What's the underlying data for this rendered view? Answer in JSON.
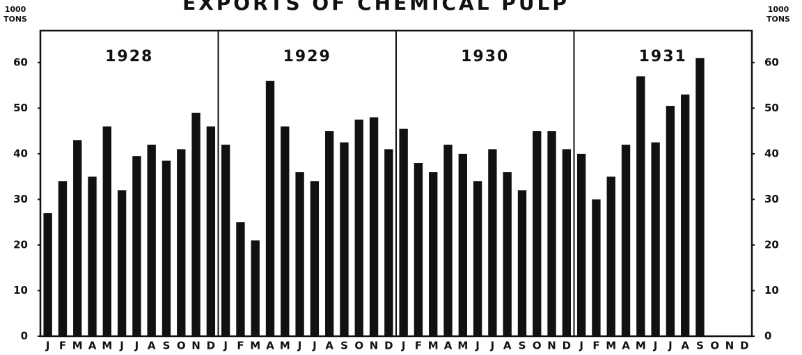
{
  "chart_data": {
    "type": "bar",
    "title": "EXPORTS OF CHEMICAL PULP",
    "ylabel_lines": [
      "1000",
      "TONS"
    ],
    "y2label_lines": [
      "1000",
      "TONS"
    ],
    "years": [
      "1928",
      "1929",
      "1930",
      "1931"
    ],
    "categories": [
      "J",
      "F",
      "M",
      "A",
      "M",
      "J",
      "J",
      "A",
      "S",
      "O",
      "N",
      "D",
      "J",
      "F",
      "M",
      "A",
      "M",
      "J",
      "J",
      "A",
      "S",
      "O",
      "N",
      "D",
      "J",
      "F",
      "M",
      "A",
      "M",
      "J",
      "J",
      "A",
      "S",
      "O",
      "N",
      "D",
      "J",
      "F",
      "M",
      "A",
      "M",
      "J",
      "J",
      "A",
      "S",
      "O",
      "N",
      "D"
    ],
    "values": [
      27,
      34,
      43,
      35,
      46,
      32,
      39.5,
      42,
      38.5,
      41,
      49,
      46,
      42,
      25,
      21,
      56,
      46,
      36,
      34,
      45,
      42.5,
      47.5,
      48,
      41,
      45.5,
      38,
      36,
      42,
      40,
      34,
      41,
      36,
      32,
      45,
      45,
      41,
      40,
      30,
      35,
      42,
      57,
      42.5,
      50.5,
      53,
      61,
      null,
      null,
      null
    ],
    "color": "#111111",
    "ylim": [
      0,
      67
    ],
    "yticks": [
      0,
      10,
      20,
      30,
      40,
      50,
      60
    ],
    "y2lim": [
      0,
      67
    ],
    "y2ticks": [
      0,
      10,
      20,
      30,
      40,
      50,
      60
    ],
    "grid": false
  }
}
